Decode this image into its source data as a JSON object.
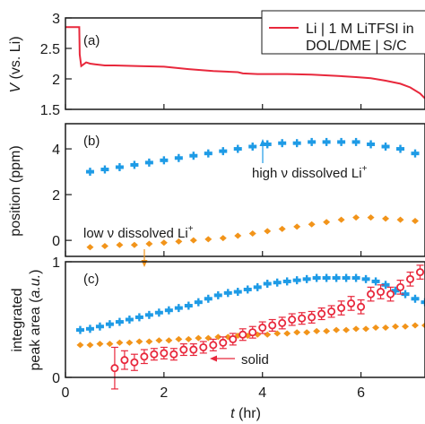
{
  "chart_data": [
    {
      "type": "line",
      "panel_label": "(a)",
      "ylabel": "V (vs. Li)",
      "ylabel_italic": "V",
      "ylabel_rest": " (vs. Li)",
      "ylim": [
        1.5,
        3
      ],
      "yticks": [
        1.5,
        2,
        2.5,
        3
      ],
      "ytick_labels": [
        "1.5",
        "2",
        "2.5",
        "3"
      ],
      "xlim": [
        0,
        7.3
      ],
      "color": "#e8283c",
      "legend": {
        "line1": "Li | 1 M LiTFSI in",
        "line2": "DOL/DME | S/C",
        "placement": "top-right"
      },
      "series": [
        {
          "name": "Li | 1 M LiTFSI in DOL/DME | S/C",
          "x": [
            0,
            0.28,
            0.29,
            0.32,
            0.37,
            0.42,
            0.5,
            0.6,
            0.8,
            1.0,
            1.5,
            2.0,
            2.5,
            3.0,
            3.5,
            3.6,
            3.9,
            4.5,
            5.0,
            5.5,
            5.9,
            6.2,
            6.5,
            6.8,
            7.0,
            7.2,
            7.3
          ],
          "y": [
            2.85,
            2.85,
            2.4,
            2.21,
            2.24,
            2.27,
            2.25,
            2.24,
            2.22,
            2.22,
            2.21,
            2.2,
            2.16,
            2.13,
            2.11,
            2.09,
            2.08,
            2.08,
            2.07,
            2.05,
            2.03,
            2.01,
            1.97,
            1.92,
            1.86,
            1.76,
            1.68
          ]
        }
      ]
    },
    {
      "type": "scatter",
      "panel_label": "(b)",
      "ylabel": "position (ppm)",
      "ylim": [
        -0.7,
        5.1
      ],
      "yticks": [
        0,
        2,
        4
      ],
      "ytick_labels": [
        "0",
        "2",
        "4"
      ],
      "xlim": [
        0,
        7.3
      ],
      "series": [
        {
          "color": "#1e9be6",
          "x": [
            0.5,
            0.8,
            1.1,
            1.4,
            1.7,
            2.0,
            2.3,
            2.6,
            2.9,
            3.2,
            3.5,
            3.8,
            4.1,
            4.4,
            4.7,
            5.0,
            5.3,
            5.6,
            5.9,
            6.2,
            6.5,
            6.8,
            7.1
          ],
          "y": [
            3.0,
            3.1,
            3.2,
            3.3,
            3.4,
            3.5,
            3.6,
            3.7,
            3.8,
            3.9,
            4.0,
            4.1,
            4.2,
            4.25,
            4.25,
            4.3,
            4.3,
            4.3,
            4.3,
            4.2,
            4.1,
            4.0,
            3.8
          ]
        },
        {
          "color": "#f2941a",
          "x": [
            0.5,
            0.8,
            1.1,
            1.4,
            1.7,
            2.0,
            2.3,
            2.6,
            2.9,
            3.2,
            3.5,
            3.8,
            4.1,
            4.4,
            4.7,
            5.0,
            5.3,
            5.6,
            5.9,
            6.2,
            6.5,
            6.8,
            7.1
          ],
          "y": [
            -0.3,
            -0.25,
            -0.2,
            -0.2,
            -0.15,
            -0.1,
            -0.05,
            0.0,
            0.05,
            0.1,
            0.2,
            0.3,
            0.4,
            0.5,
            0.6,
            0.7,
            0.8,
            0.9,
            1.0,
            1.0,
            0.95,
            0.9,
            0.85
          ]
        }
      ],
      "annotations": [
        {
          "text": "high ν dissolved Li",
          "sup": "+"
        },
        {
          "text": "low ν dissolved Li",
          "sup": "+"
        }
      ]
    },
    {
      "type": "scatter",
      "panel_label": "(c)",
      "ylabel_line1": "integrated",
      "ylabel_line2_pre": "peak area (",
      "ylabel_line2_italic": "a.u.",
      "ylabel_line2_post": ")",
      "ylim": [
        0,
        1
      ],
      "yticks": [
        0,
        1
      ],
      "ytick_labels": [
        "0",
        "1"
      ],
      "xlim": [
        0,
        7.3
      ],
      "xticks": [
        0,
        2,
        4,
        6
      ],
      "xtick_labels": [
        "0",
        "2",
        "4",
        "6"
      ],
      "xlabel_italic": "t",
      "xlabel_rest": " (hr)",
      "series": [
        {
          "color": "#1e9be6",
          "x": [
            0.3,
            0.5,
            0.7,
            0.9,
            1.1,
            1.3,
            1.5,
            1.7,
            1.9,
            2.1,
            2.3,
            2.5,
            2.7,
            2.9,
            3.1,
            3.3,
            3.5,
            3.7,
            3.9,
            4.1,
            4.3,
            4.5,
            4.7,
            4.9,
            5.1,
            5.3,
            5.5,
            5.7,
            5.9,
            6.1,
            6.3,
            6.5,
            6.7,
            6.9,
            7.1,
            7.3
          ],
          "y": [
            0.41,
            0.42,
            0.44,
            0.46,
            0.48,
            0.5,
            0.52,
            0.54,
            0.56,
            0.58,
            0.6,
            0.62,
            0.65,
            0.68,
            0.71,
            0.73,
            0.74,
            0.76,
            0.78,
            0.81,
            0.82,
            0.83,
            0.84,
            0.85,
            0.86,
            0.86,
            0.86,
            0.86,
            0.86,
            0.85,
            0.83,
            0.8,
            0.75,
            0.72,
            0.68,
            0.65
          ]
        },
        {
          "color": "#f2941a",
          "x": [
            0.3,
            0.5,
            0.7,
            0.9,
            1.1,
            1.3,
            1.5,
            1.7,
            1.9,
            2.1,
            2.3,
            2.5,
            2.7,
            2.9,
            3.1,
            3.3,
            3.5,
            3.7,
            3.9,
            4.1,
            4.3,
            4.5,
            4.7,
            4.9,
            5.1,
            5.3,
            5.5,
            5.7,
            5.9,
            6.1,
            6.3,
            6.5,
            6.7,
            6.9,
            7.1,
            7.3
          ],
          "y": [
            0.28,
            0.28,
            0.29,
            0.29,
            0.3,
            0.3,
            0.31,
            0.31,
            0.32,
            0.32,
            0.33,
            0.33,
            0.34,
            0.34,
            0.35,
            0.35,
            0.36,
            0.36,
            0.37,
            0.37,
            0.38,
            0.38,
            0.39,
            0.39,
            0.4,
            0.4,
            0.41,
            0.41,
            0.42,
            0.42,
            0.43,
            0.43,
            0.44,
            0.44,
            0.45,
            0.45
          ]
        },
        {
          "name": "solid",
          "color": "#e8283c",
          "x": [
            1.0,
            1.2,
            1.4,
            1.6,
            1.8,
            2.0,
            2.2,
            2.4,
            2.6,
            2.8,
            3.0,
            3.2,
            3.4,
            3.6,
            3.8,
            4.0,
            4.2,
            4.4,
            4.6,
            4.8,
            5.0,
            5.2,
            5.4,
            5.6,
            5.8,
            6.0,
            6.2,
            6.4,
            6.6,
            6.8,
            7.0,
            7.2
          ],
          "y": [
            0.08,
            0.15,
            0.13,
            0.18,
            0.2,
            0.21,
            0.2,
            0.24,
            0.24,
            0.26,
            0.28,
            0.3,
            0.33,
            0.37,
            0.39,
            0.43,
            0.45,
            0.47,
            0.5,
            0.51,
            0.52,
            0.55,
            0.57,
            0.6,
            0.64,
            0.61,
            0.72,
            0.74,
            0.72,
            0.78,
            0.85,
            0.91
          ],
          "err": [
            0.18,
            0.08,
            0.07,
            0.06,
            0.05,
            0.05,
            0.05,
            0.05,
            0.05,
            0.05,
            0.05,
            0.05,
            0.05,
            0.05,
            0.05,
            0.05,
            0.05,
            0.05,
            0.05,
            0.05,
            0.05,
            0.05,
            0.05,
            0.06,
            0.06,
            0.06,
            0.06,
            0.06,
            0.06,
            0.06,
            0.06,
            0.06
          ]
        }
      ],
      "annotations": [
        {
          "text": "solid"
        }
      ]
    }
  ]
}
